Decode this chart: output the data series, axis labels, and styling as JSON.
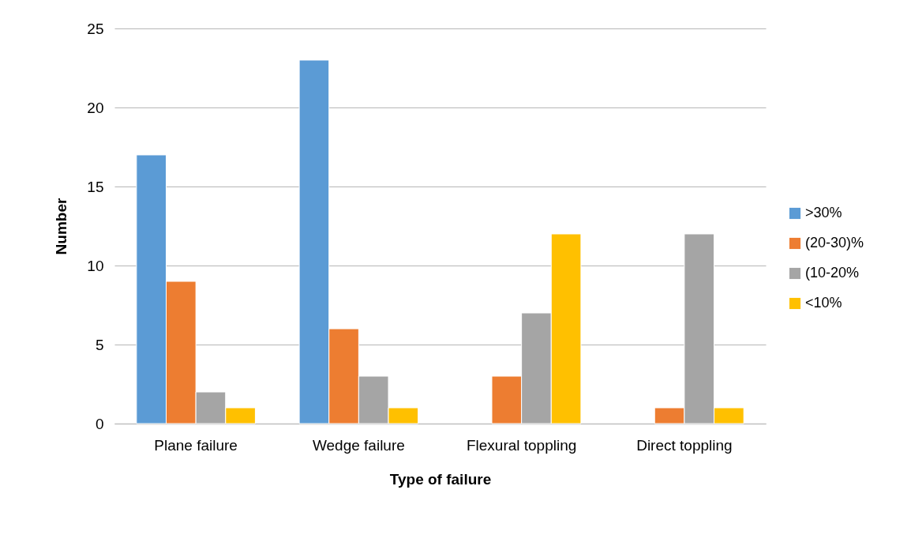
{
  "chart_data": {
    "type": "bar",
    "xlabel": "Type of failure",
    "ylabel": "Number",
    "categories": [
      "Plane failure",
      "Wedge failure",
      "Flexural toppling",
      "Direct toppling"
    ],
    "series": [
      {
        "name": ">30%",
        "color": "#5b9bd5",
        "values": [
          17,
          23,
          null,
          null
        ]
      },
      {
        "name": "(20-30)%",
        "color": "#ed7d31",
        "values": [
          9,
          6,
          3,
          1
        ]
      },
      {
        "name": "(10-20%",
        "color": "#a5a5a5",
        "values": [
          2,
          3,
          7,
          12
        ]
      },
      {
        "name": "<10%",
        "color": "#ffc000",
        "values": [
          1,
          1,
          12,
          1
        ]
      }
    ],
    "ylim": [
      0,
      25
    ],
    "yticks": [
      0,
      5,
      10,
      15,
      20,
      25
    ],
    "grid": "y",
    "legend": "right"
  }
}
